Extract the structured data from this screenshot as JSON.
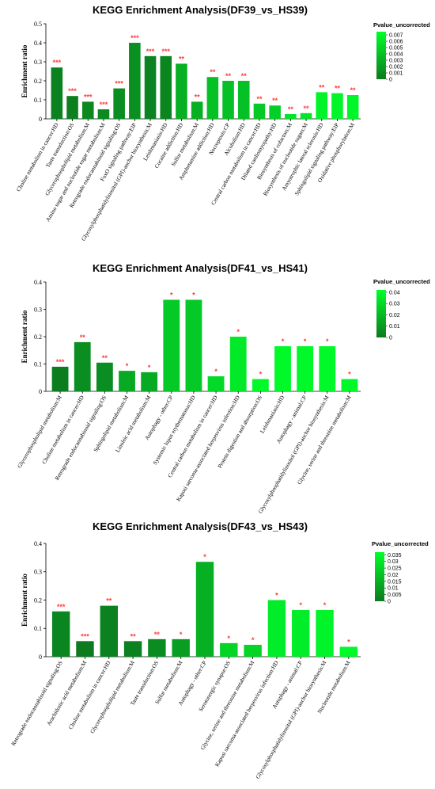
{
  "chart_data": [
    {
      "type": "bar",
      "title": "KEGG Enrichment Analysis(DF39_vs_HS39)",
      "ylabel": "Enrichment ratio",
      "ylim": [
        0,
        0.5
      ],
      "yticks": [
        "0",
        "0.1",
        "0.2",
        "0.3",
        "0.4",
        "0.5"
      ],
      "legend_title": "Pvalue_uncorrected",
      "legend_ticks": [
        "0.007",
        "0.006",
        "0.005",
        "0.004",
        "0.003",
        "0.002",
        "0.001",
        "0"
      ],
      "legend_max": 0.0075,
      "color_low": "#0c7a1f",
      "color_high": "#00ff2a",
      "significance_color": "#ff3b3b",
      "categories": [
        "Choline metabolism in cancer:HD",
        "Taste transduction:OS",
        "Glycerophospholipid metabolism:M",
        "Amino sugar and nucleotide sugar metabolism:M",
        "Retrograde endocannabinoid signaling:OS",
        "FoxO signaling pathway:EIP",
        "Glycosylphosphatidylinositol (GPI)-anchor biosynthesis:M",
        "Leishmaniasis:HD",
        "Cocaine addiction:HD",
        "Sulfur metabolism:M",
        "Amphetamine addiction:HD",
        "Necroptosis:CP",
        "Alcoholism:HD",
        "Central carbon metabolism in cancer:HD",
        "Dilated cardiomyopathy:HD",
        "Biosynthesis of cofactors:M",
        "Biosynthesis of nucleotide sugars:M",
        "Amyotrophic lateral sclerosis:HD",
        "Sphingolipid signaling pathway:EIP",
        "Oxidative phosphorylation:M"
      ],
      "values": [
        0.27,
        0.12,
        0.09,
        0.05,
        0.16,
        0.4,
        0.33,
        0.33,
        0.29,
        0.09,
        0.22,
        0.2,
        0.2,
        0.08,
        0.07,
        0.025,
        0.03,
        0.14,
        0.135,
        0.125
      ],
      "pvalues": [
        0.0004,
        0.0003,
        0.0008,
        0.0009,
        0.0011,
        0.0012,
        0.0005,
        0.0006,
        0.003,
        0.003,
        0.004,
        0.004,
        0.004,
        0.0045,
        0.0048,
        0.006,
        0.006,
        0.0068,
        0.007,
        0.007
      ],
      "significance": [
        "***",
        "***",
        "***",
        "***",
        "***",
        "***",
        "***",
        "***",
        "**",
        "**",
        "**",
        "**",
        "**",
        "**",
        "**",
        "**",
        "**",
        "**",
        "**",
        "**"
      ]
    },
    {
      "type": "bar",
      "title": "KEGG Enrichment Analysis(DF41_vs_HS41)",
      "ylabel": "Enrichment ratio",
      "ylim": [
        0,
        0.4
      ],
      "yticks": [
        "0",
        "0.1",
        "0.2",
        "0.3",
        "0.4"
      ],
      "legend_title": "Pvalue_uncorrected",
      "legend_ticks": [
        "0.04",
        "0.03",
        "0.02",
        "0.01",
        "0"
      ],
      "legend_max": 0.042,
      "color_low": "#0c7a1f",
      "color_high": "#00ff2a",
      "significance_color": "#ff3b3b",
      "categories": [
        "Glycerophospholipid metabolism:M",
        "Choline metabolism in cancer:HD",
        "Retrograde endocannabinoid signaling:OS",
        "Sphingolipid metabolism:M",
        "Linoleic acid metabolism:M",
        "Autophagy - other:CP",
        "Systemic lupus erythematosus:HD",
        "Central carbon metabolism in cancer:HD",
        "Kaposi sarcoma-associated herpesvirus infection:HD",
        "Protein digestion and absorption:OS",
        "Leishmaniasis:HD",
        "Autophagy - animal:CP",
        "Glycosylphosphatidylinositol (GPI)-anchor biosynthesis:M",
        "Glycine, serine and threonine metabolism:M"
      ],
      "values": [
        0.09,
        0.18,
        0.105,
        0.075,
        0.07,
        0.335,
        0.335,
        0.055,
        0.2,
        0.045,
        0.165,
        0.165,
        0.165,
        0.045
      ],
      "pvalues": [
        0.0008,
        0.006,
        0.006,
        0.015,
        0.015,
        0.025,
        0.025,
        0.03,
        0.035,
        0.04,
        0.04,
        0.04,
        0.04,
        0.04
      ],
      "significance": [
        "***",
        "**",
        "**",
        "*",
        "*",
        "*",
        "*",
        "*",
        "*",
        "*",
        "*",
        "*",
        "*",
        "*"
      ]
    },
    {
      "type": "bar",
      "title": "KEGG Enrichment Analysis(DF43_vs_HS43)",
      "ylabel": "Enrichment ratio",
      "ylim": [
        0,
        0.4
      ],
      "yticks": [
        "0",
        "0.1",
        "0.2",
        "0.3",
        "0.4"
      ],
      "legend_title": "Pvalue_uncorrected",
      "legend_ticks": [
        "0.035",
        "0.03",
        "0.025",
        "0.02",
        "0.015",
        "0.01",
        "0.005",
        "0"
      ],
      "legend_max": 0.037,
      "color_low": "#0c7a1f",
      "color_high": "#00ff2a",
      "significance_color": "#ff3b3b",
      "categories": [
        "Retrograde endocannabinoid signaling:OS",
        "Arachidonic acid metabolism:M",
        "Choline metabolism in cancer:HD",
        "Glycerophospholipid metabolism:M",
        "Taste transduction:OS",
        "Sulfur metabolism:M",
        "Autophagy - other:CP",
        "Serotonergic synapse:OS",
        "Glycine, serine and threonine metabolism:M",
        "Kaposi sarcoma-associated herpesvirus infection:HD",
        "Autophagy - animal:CP",
        "Glycosylphosphatidylinositol (GPI)-anchor biosynthesis:M",
        "Nucleotide metabolism:M"
      ],
      "values": [
        0.16,
        0.055,
        0.18,
        0.055,
        0.062,
        0.062,
        0.335,
        0.048,
        0.042,
        0.2,
        0.165,
        0.165,
        0.035
      ],
      "pvalues": [
        0.003,
        0.0002,
        0.002,
        0.002,
        0.005,
        0.01,
        0.015,
        0.025,
        0.025,
        0.032,
        0.032,
        0.034,
        0.035
      ],
      "significance": [
        "***",
        "***",
        "**",
        "**",
        "**",
        "*",
        "*",
        "*",
        "*",
        "*",
        "*",
        "*",
        "*"
      ]
    }
  ]
}
